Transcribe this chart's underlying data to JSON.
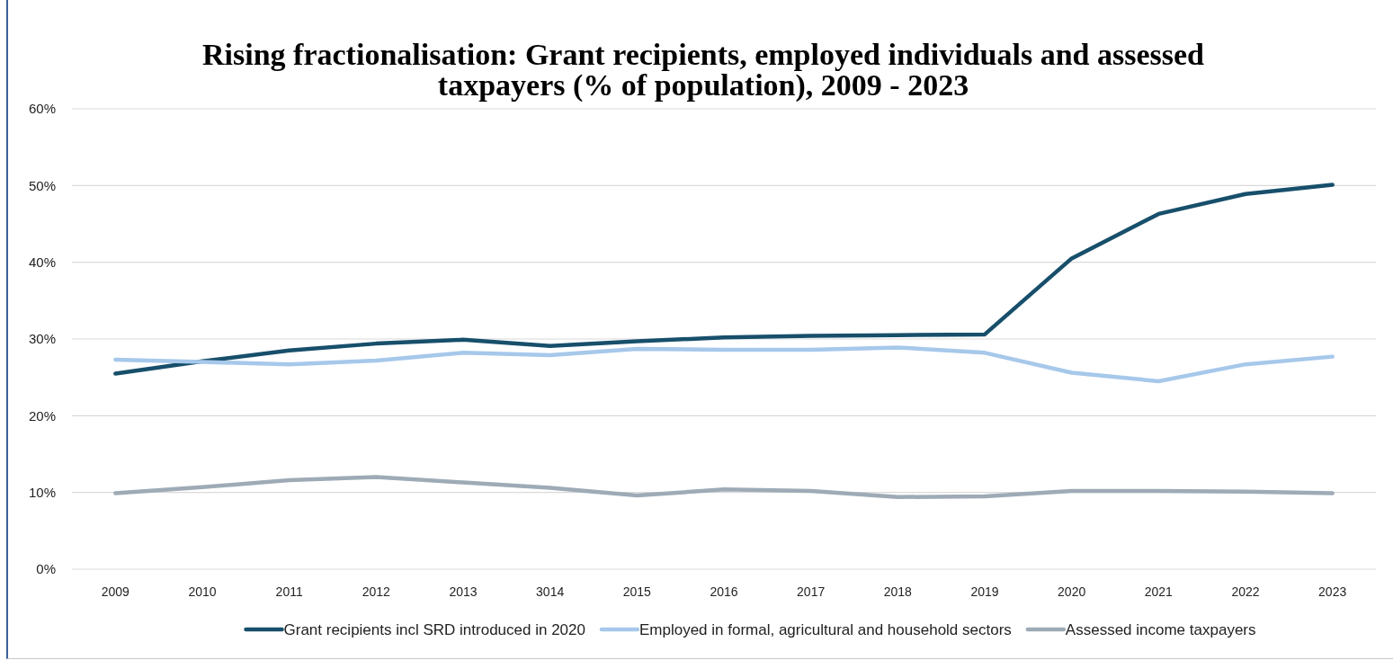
{
  "chart_data": {
    "type": "line",
    "title": "Rising fractionalisation: Grant recipients, employed individuals and assessed taxpayers (% of population), 2009 - 2023",
    "categories": [
      "2009",
      "2010",
      "2011",
      "2012",
      "2013",
      "3014",
      "2015",
      "2016",
      "2017",
      "2018",
      "2019",
      "2020",
      "2021",
      "2022",
      "2023"
    ],
    "series": [
      {
        "name": "Grant recipients incl SRD introduced in 2020",
        "color": "#174f6b",
        "values": [
          25.5,
          27.1,
          28.5,
          29.4,
          29.9,
          29.1,
          29.7,
          30.2,
          30.4,
          30.5,
          30.6,
          40.5,
          46.3,
          48.9,
          50.1
        ]
      },
      {
        "name": "Employed in formal, agricultural and household sectors",
        "color": "#a6c8ea",
        "values": [
          27.3,
          27.0,
          26.7,
          27.2,
          28.2,
          27.9,
          28.7,
          28.6,
          28.6,
          28.9,
          28.2,
          25.6,
          24.5,
          26.7,
          27.7
        ]
      },
      {
        "name": "Assessed income taxpayers",
        "color": "#9eabb6",
        "values": [
          9.9,
          10.7,
          11.6,
          12.0,
          11.3,
          10.6,
          9.6,
          10.4,
          10.2,
          9.4,
          9.5,
          10.2,
          10.2,
          10.1,
          9.9
        ]
      }
    ],
    "ylim": [
      0,
      60
    ],
    "yticks": [
      {
        "value": 0,
        "label": "0%"
      },
      {
        "value": 10,
        "label": "10%"
      },
      {
        "value": 20,
        "label": "20%"
      },
      {
        "value": 30,
        "label": "30%"
      },
      {
        "value": 40,
        "label": "40%"
      },
      {
        "value": 50,
        "label": "50%"
      },
      {
        "value": 60,
        "label": "60%"
      }
    ],
    "grid": "y",
    "legend": "bottom",
    "marker": "none",
    "line_style": "solid"
  }
}
